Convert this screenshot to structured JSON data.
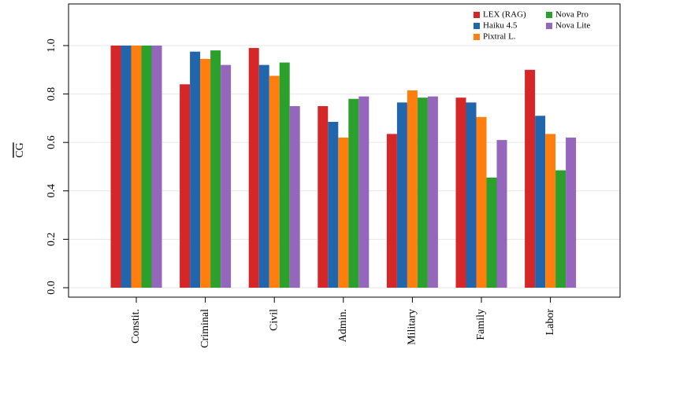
{
  "chart_data": {
    "type": "bar",
    "ylabel": "CG",
    "categories": [
      "Constit.",
      "Criminal",
      "Civil",
      "Admin.",
      "Military",
      "Family",
      "Labor"
    ],
    "series": [
      {
        "name": "LEX (RAG)",
        "color": "#d62728",
        "values": [
          1.0,
          0.84,
          0.99,
          0.75,
          0.635,
          0.785,
          0.9
        ]
      },
      {
        "name": "Haiku 4.5",
        "color": "#2166ac",
        "values": [
          1.0,
          0.975,
          0.92,
          0.685,
          0.765,
          0.765,
          0.71
        ]
      },
      {
        "name": "Pixtral L.",
        "color": "#ff7f0e",
        "values": [
          1.0,
          0.945,
          0.875,
          0.62,
          0.815,
          0.705,
          0.635
        ]
      },
      {
        "name": "Nova Pro",
        "color": "#2ca02c",
        "values": [
          1.0,
          0.98,
          0.93,
          0.78,
          0.785,
          0.455,
          0.485
        ]
      },
      {
        "name": "Nova Lite",
        "color": "#9467bd",
        "values": [
          1.0,
          0.92,
          0.75,
          0.79,
          0.79,
          0.61,
          0.62
        ]
      }
    ],
    "ylim": [
      -0.039,
      1.172
    ],
    "yticks": [
      {
        "value": 0,
        "label": "0.0"
      },
      0.2,
      0.4,
      0.6,
      0.8,
      {
        "value": 1,
        "label": "1.0"
      }
    ],
    "grid": true,
    "legend": "top-right"
  }
}
